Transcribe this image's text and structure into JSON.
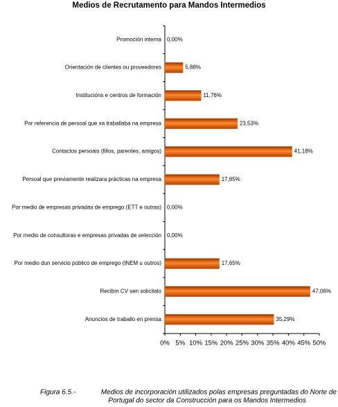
{
  "chart_data": {
    "type": "barh",
    "title": "Medios de Recrutamento para Mandos Intermedios",
    "categories": [
      "Promoción interna",
      "Orientación de clientes ou proveedores",
      "Institucións e centros de formación",
      "Por referencia de persoal que xa traballaba na empresa",
      "Contactos persoais (fillos, parentes, amigos)",
      "Persoal que previamente realizara prácticas na empresa",
      "Por medio de empresas privadas de emprego (ETT e outras)",
      "Por medio  de consultoras e empresas privadas de selección",
      "Por medio dun servicio público de emprego (INEM u outros)",
      "Recibín CV sen solicitalo",
      "Anuncios de traballo en prensa"
    ],
    "values": [
      0,
      5.88,
      11.76,
      23.53,
      41.18,
      17.65,
      0,
      0,
      17.65,
      47.06,
      35.29
    ],
    "value_labels": [
      "0,00%",
      "5,88%",
      "11,76%",
      "23,53%",
      "41,18%",
      "17,65%",
      "0,00%",
      "0,00%",
      "17,65%",
      "47,06%",
      "35,29%"
    ],
    "color": "#e8640f",
    "xlim": [
      0,
      50
    ],
    "xticks": [
      {
        "value": 0,
        "label": "0%"
      },
      {
        "value": 5,
        "label": "5%"
      },
      {
        "value": 10,
        "label": "10%"
      },
      {
        "value": 15,
        "label": "15%"
      },
      {
        "value": 20,
        "label": "20%"
      },
      {
        "value": 25,
        "label": "25%"
      },
      {
        "value": 30,
        "label": "30%"
      },
      {
        "value": 35,
        "label": "35%"
      },
      {
        "value": 40,
        "label": "40%"
      },
      {
        "value": 45,
        "label": "45%"
      },
      {
        "value": 50,
        "label": "50%"
      }
    ]
  },
  "caption": {
    "label": "Figura 6.5.-",
    "lines": [
      "Medios de incorporación utilizados polas empresas preguntadas do Norte de",
      "Portugal do sector da Construcción para os Mandos Intermedios"
    ]
  }
}
